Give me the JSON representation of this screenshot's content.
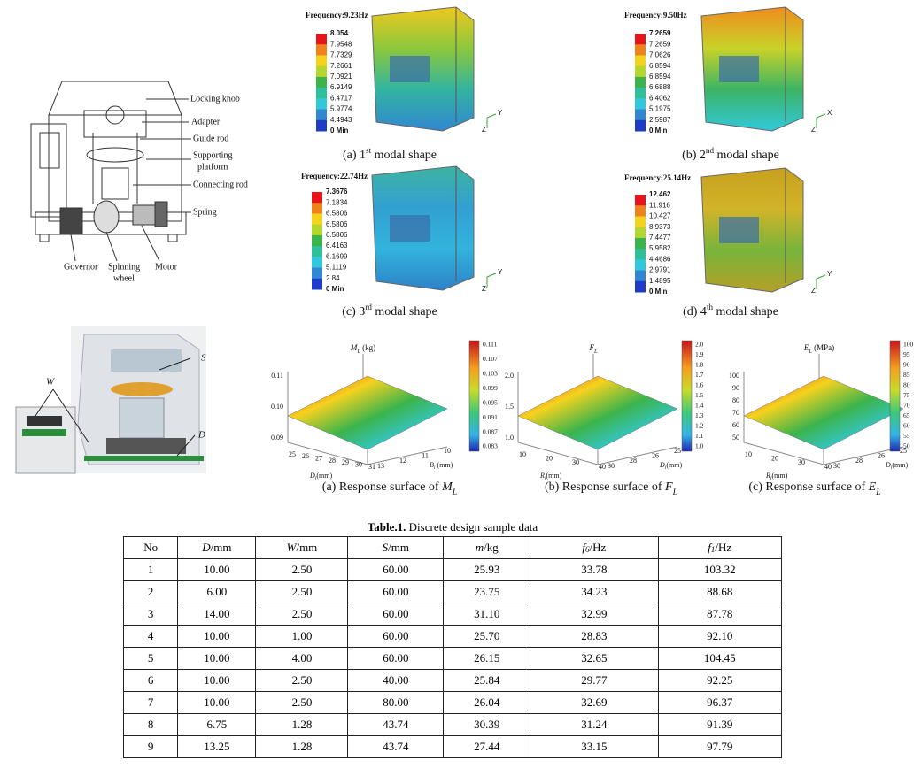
{
  "schematic": {
    "labels": [
      "Locking knob",
      "Adapter",
      "Guide rod",
      "Supporting",
      "platform",
      "Connecting rod",
      "Spring",
      "Governor",
      "Spinning",
      "wheel",
      "Motor"
    ]
  },
  "modal_shapes": [
    {
      "frequency": "Frequency:9.23Hz",
      "legend": [
        "8.054",
        "7.9548",
        "7.7329",
        "7.2661",
        "7.0921",
        "6.9149",
        "6.4717",
        "5.9774",
        "4.4943",
        "0 Min"
      ],
      "axes": [
        "Y",
        "Z"
      ],
      "caption": {
        "prefix": "(a) 1",
        "sup": "st",
        "suffix": " modal shape"
      }
    },
    {
      "frequency": "Frequency:9.50Hz",
      "legend": [
        "7.2659",
        "7.2659",
        "7.0626",
        "6.8594",
        "6.8594",
        "6.6888",
        "6.4062",
        "5.1975",
        "2.5987",
        "0 Min"
      ],
      "axes": [
        "X",
        "Z"
      ],
      "caption": {
        "prefix": "(b) 2",
        "sup": "nd",
        "suffix": " modal shape"
      }
    },
    {
      "frequency": "Frequency:22.74Hz",
      "legend": [
        "7.3676",
        "7.1834",
        "6.5806",
        "6.5806",
        "6.5806",
        "6.4163",
        "6.1699",
        "5.1119",
        "2.84",
        "0 Min"
      ],
      "axes": [
        "Y",
        "Z"
      ],
      "caption": {
        "prefix": "(c) 3",
        "sup": "rd",
        "suffix": " modal shape"
      }
    },
    {
      "frequency": "Frequency:25.14Hz",
      "legend": [
        "12.462",
        "11.916",
        "10.427",
        "8.9373",
        "7.4477",
        "5.9582",
        "4.4686",
        "2.9791",
        "1.4895",
        "0 Min"
      ],
      "axes": [
        "Y",
        "Z"
      ],
      "caption": {
        "prefix": "(d) 4",
        "sup": "th",
        "suffix": " modal shape"
      }
    }
  ],
  "model_3d": {
    "labels": [
      "S",
      "W",
      "D"
    ]
  },
  "response_surfaces": [
    {
      "z_label": {
        "sym": "M",
        "sub": "L",
        "unit": " (kg)"
      },
      "z_ticks": [
        "0.11",
        "0.10",
        "0.09"
      ],
      "x_label": {
        "sym": "D",
        "sub": "l",
        "unit": "(mm)"
      },
      "x_ticks": [
        "25",
        "26",
        "27",
        "28",
        "29",
        "30",
        "31"
      ],
      "y_label": {
        "sym": "B",
        "sub": "l",
        "unit": " (mm)"
      },
      "y_ticks": [
        "13",
        "12",
        "11",
        "10"
      ],
      "colorbar": [
        "0.111",
        "0.107",
        "0.103",
        "0.099",
        "0.095",
        "0.091",
        "0.087",
        "0.083"
      ],
      "caption": {
        "text": "(a) Response surface of ",
        "sym": "M",
        "sub": "L"
      }
    },
    {
      "z_label": {
        "sym": "F",
        "sub": "L"
      },
      "z_ticks": [
        "2.0",
        "1.5",
        "1.0"
      ],
      "x_label": {
        "sym": "R",
        "sub": "l",
        "unit": "(mm)"
      },
      "x_ticks": [
        "10",
        "20",
        "30",
        "40"
      ],
      "y_label": {
        "sym": "D",
        "sub": "l",
        "unit": "(mm)"
      },
      "y_ticks": [
        "30",
        "28",
        "26",
        "25"
      ],
      "colorbar": [
        "2.0",
        "1.9",
        "1.8",
        "1.7",
        "1.6",
        "1.5",
        "1.4",
        "1.3",
        "1.2",
        "1.1",
        "1.0"
      ],
      "caption": {
        "text": "(b) Response surface of ",
        "sym": "F",
        "sub": "L"
      }
    },
    {
      "z_label": {
        "sym": "E",
        "sub": "L",
        "unit": " (MPa)"
      },
      "z_ticks": [
        "100",
        "90",
        "80",
        "70",
        "60",
        "50"
      ],
      "x_label": {
        "sym": "R",
        "sub": "l",
        "unit": "(mm)"
      },
      "x_ticks": [
        "10",
        "20",
        "30",
        "40"
      ],
      "y_label": {
        "sym": "D",
        "sub": "l",
        "unit": "(mm)"
      },
      "y_ticks": [
        "30",
        "28",
        "26",
        "25"
      ],
      "colorbar": [
        "100",
        "95",
        "90",
        "85",
        "80",
        "75",
        "70",
        "65",
        "60",
        "55",
        "50"
      ],
      "caption": {
        "text": "(c) Response surface of ",
        "sym": "E",
        "sub": "L"
      }
    }
  ],
  "table": {
    "title": {
      "bold": "Table.1.",
      "text": " Discrete design sample data"
    },
    "header": [
      {
        "text": "No"
      },
      {
        "sym": "D",
        "unit": "/mm"
      },
      {
        "sym": "W",
        "unit": "/mm"
      },
      {
        "sym": "S",
        "unit": "/mm"
      },
      {
        "sym": "m",
        "unit": "/kg"
      },
      {
        "sym": "f",
        "sub": "6",
        "unit": "/Hz"
      },
      {
        "sym": "f",
        "sub": "1",
        "unit": "/Hz"
      }
    ],
    "rows": [
      [
        "1",
        "10.00",
        "2.50",
        "60.00",
        "25.93",
        "33.78",
        "103.32"
      ],
      [
        "2",
        "6.00",
        "2.50",
        "60.00",
        "23.75",
        "34.23",
        "88.68"
      ],
      [
        "3",
        "14.00",
        "2.50",
        "60.00",
        "31.10",
        "32.99",
        "87.78"
      ],
      [
        "4",
        "10.00",
        "1.00",
        "60.00",
        "25.70",
        "28.83",
        "92.10"
      ],
      [
        "5",
        "10.00",
        "4.00",
        "60.00",
        "26.15",
        "32.65",
        "104.45"
      ],
      [
        "6",
        "10.00",
        "2.50",
        "40.00",
        "25.84",
        "29.77",
        "92.25"
      ],
      [
        "7",
        "10.00",
        "2.50",
        "80.00",
        "26.04",
        "32.69",
        "96.37"
      ],
      [
        "8",
        "6.75",
        "1.28",
        "43.74",
        "30.39",
        "31.24",
        "91.39"
      ],
      [
        "9",
        "13.25",
        "1.28",
        "43.74",
        "27.44",
        "33.15",
        "97.79"
      ]
    ]
  }
}
